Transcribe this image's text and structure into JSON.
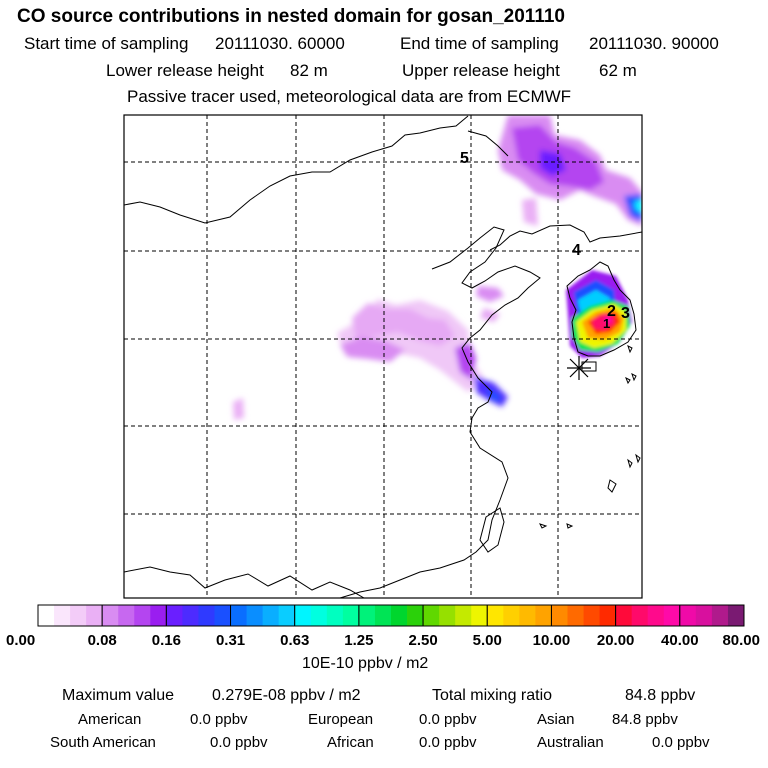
{
  "header": {
    "title": "CO  source contributions in nested domain for gosan_201110",
    "start_label": "Start time of sampling",
    "start_value": "20111030. 60000",
    "end_label": "End time of sampling",
    "end_value": "20111030. 90000",
    "lower_label": "Lower release height",
    "lower_value": "82 m",
    "upper_label": "Upper release height",
    "upper_value": "62 m",
    "note": "Passive tracer used, meteorological data are from ECMWF"
  },
  "chart_data": {
    "type": "heatmap",
    "map_labels": [
      "5",
      "4",
      "2",
      "3",
      "1"
    ],
    "receptor": "gosan",
    "colorbar": {
      "tick_labels": [
        "0.00",
        "0.08",
        "0.16",
        "0.31",
        "0.63",
        "1.25",
        "2.50",
        "5.00",
        "10.00",
        "20.00",
        "40.00",
        "80.00"
      ],
      "unit_label": "10E-10 ppbv / m2",
      "colors": [
        [
          "#ffffff",
          "#fae6fc",
          "#f3ccf8",
          "#eab0f5"
        ],
        [
          "#d98cf2",
          "#c768f0",
          "#b445f0",
          "#9a1ef0"
        ],
        [
          "#6a1fff",
          "#4d2bff",
          "#2f3aff",
          "#1a50ff"
        ],
        [
          "#0a6eff",
          "#0a8eff",
          "#0aaeff",
          "#0acdff"
        ],
        [
          "#00f5ff",
          "#00ffe0",
          "#00ffc0",
          "#00ffa0"
        ],
        [
          "#00f27a",
          "#00e455",
          "#00d62e",
          "#2bd10a"
        ],
        [
          "#60d800",
          "#96e000",
          "#c4ea00",
          "#eef500"
        ],
        [
          "#ffe600",
          "#ffd000",
          "#ffba00",
          "#ffa300"
        ],
        [
          "#ff8a00",
          "#ff6a00",
          "#ff4a00",
          "#ff2a00"
        ],
        [
          "#ff0a3a",
          "#ff0a6a",
          "#ff0a8c",
          "#ff0aa8"
        ],
        [
          "#f00aa8",
          "#d8109e",
          "#b01a8c",
          "#7a1a72"
        ]
      ]
    }
  },
  "summary": {
    "max_label": "Maximum value",
    "max_value": "0.279E-08 ppbv / m2",
    "total_label": "Total mixing ratio",
    "total_value": "84.8 ppbv",
    "regions": {
      "american": {
        "name": "American",
        "value": "0.0 ppbv"
      },
      "european": {
        "name": "European",
        "value": "0.0 ppbv"
      },
      "asian": {
        "name": "Asian",
        "value": "84.8 ppbv"
      },
      "south_american": {
        "name": "South American",
        "value": "0.0 ppbv"
      },
      "african": {
        "name": "African",
        "value": "0.0 ppbv"
      },
      "australian": {
        "name": "Australian",
        "value": "0.0 ppbv"
      }
    }
  }
}
